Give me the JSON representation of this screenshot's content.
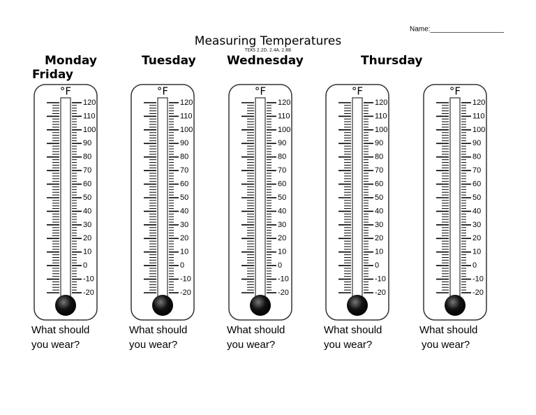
{
  "header": {
    "name_line": "Name:___________________",
    "title": "Measuring Temperatures",
    "standards": "TEKS 2.2D, 2.4A, 2.8B"
  },
  "days": [
    "Monday",
    "Tuesday",
    "Wednesday",
    "Thursday",
    "Friday"
  ],
  "thermometers": [
    {
      "unit": "°F",
      "scale": [
        120,
        110,
        100,
        90,
        80,
        70,
        60,
        50,
        40,
        30,
        20,
        10,
        0,
        -10,
        -20
      ],
      "prompt": [
        "What should",
        "you wear?"
      ]
    },
    {
      "unit": "°F",
      "scale": [
        120,
        110,
        100,
        90,
        80,
        70,
        60,
        50,
        40,
        30,
        20,
        10,
        0,
        -10,
        -20
      ],
      "prompt": [
        "What should",
        "you wear?"
      ]
    },
    {
      "unit": "°F",
      "scale": [
        120,
        110,
        100,
        90,
        80,
        70,
        60,
        50,
        40,
        30,
        20,
        10,
        0,
        -10,
        -20
      ],
      "prompt": [
        "What should",
        "you wear?"
      ]
    },
    {
      "unit": "°F",
      "scale": [
        120,
        110,
        100,
        90,
        80,
        70,
        60,
        50,
        40,
        30,
        20,
        10,
        0,
        -10,
        -20
      ],
      "prompt": [
        "What should",
        "you wear?"
      ]
    },
    {
      "unit": "°F",
      "scale": [
        120,
        110,
        100,
        90,
        80,
        70,
        60,
        50,
        40,
        30,
        20,
        10,
        0,
        -10,
        -20
      ],
      "prompt": [
        "What should",
        "you wear?"
      ]
    }
  ]
}
